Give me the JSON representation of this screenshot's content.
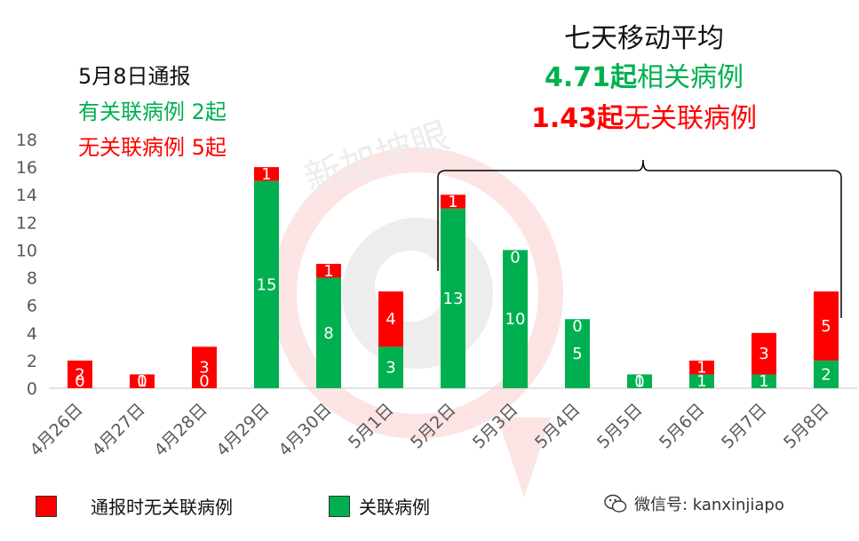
{
  "colors": {
    "related": "#00b050",
    "unrelated": "#ff0000",
    "axis": "#d9d9d9",
    "text": "#595959"
  },
  "left_panel": {
    "title": "5月8日通报",
    "line1": "有关联病例 2起",
    "line2": "无关联病例 5起"
  },
  "right_panel": {
    "title": "七天移动平均",
    "line1_value": "4.71起",
    "line1_label": "相关病例",
    "line2_value": "1.43起",
    "line2_label": "无关联病例"
  },
  "legend": {
    "unrelated_label": "通报时无关联病例",
    "related_label": "关联病例"
  },
  "watermark": {
    "text": "微信号: kanxinjiapo",
    "brand": "新加坡眼",
    "icon": "wechat-icon"
  },
  "chart_data": {
    "type": "bar",
    "stacked": true,
    "categories": [
      "4月26日",
      "4月27日",
      "4月28日",
      "4月29日",
      "4月30日",
      "5月1日",
      "5月2日",
      "5月3日",
      "5月4日",
      "5月5日",
      "5月6日",
      "5月7日",
      "5月8日"
    ],
    "series": [
      {
        "name": "关联病例",
        "values": [
          0,
          0,
          0,
          15,
          8,
          3,
          13,
          10,
          5,
          1,
          1,
          1,
          2
        ]
      },
      {
        "name": "通报时无关联病例",
        "values": [
          2,
          1,
          3,
          1,
          1,
          4,
          1,
          0,
          0,
          0,
          1,
          3,
          5
        ]
      }
    ],
    "ylim": [
      0,
      18
    ],
    "yticks": [
      0,
      2,
      4,
      6,
      8,
      10,
      12,
      14,
      16,
      18
    ],
    "grid": false,
    "legend_position": "bottom"
  }
}
